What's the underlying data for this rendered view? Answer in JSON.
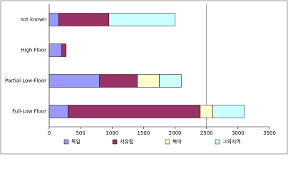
{
  "chart_data": {
    "type": "bar",
    "orientation": "horizontal",
    "stacked": true,
    "categories": [
      "not known",
      "High Floor",
      "Partial Low-Floor",
      "Full-Low Floor"
    ],
    "series": [
      {
        "name": "독일",
        "color": "#9999ff",
        "values": [
          150,
          200,
          800,
          300
        ]
      },
      {
        "name": "서유럽",
        "color": "#993366",
        "values": [
          800,
          70,
          600,
          2100
        ]
      },
      {
        "name": "북미",
        "color": "#ffffcc",
        "values": [
          0,
          0,
          350,
          200
        ]
      },
      {
        "name": "그외지역",
        "color": "#ccffff",
        "values": [
          1050,
          0,
          350,
          500
        ]
      }
    ],
    "xlim": [
      0,
      3500
    ],
    "xticks": [
      0,
      500,
      1000,
      1500,
      2000,
      2500,
      3000,
      3500
    ],
    "reference_line": 2500,
    "legend": "bottom"
  }
}
